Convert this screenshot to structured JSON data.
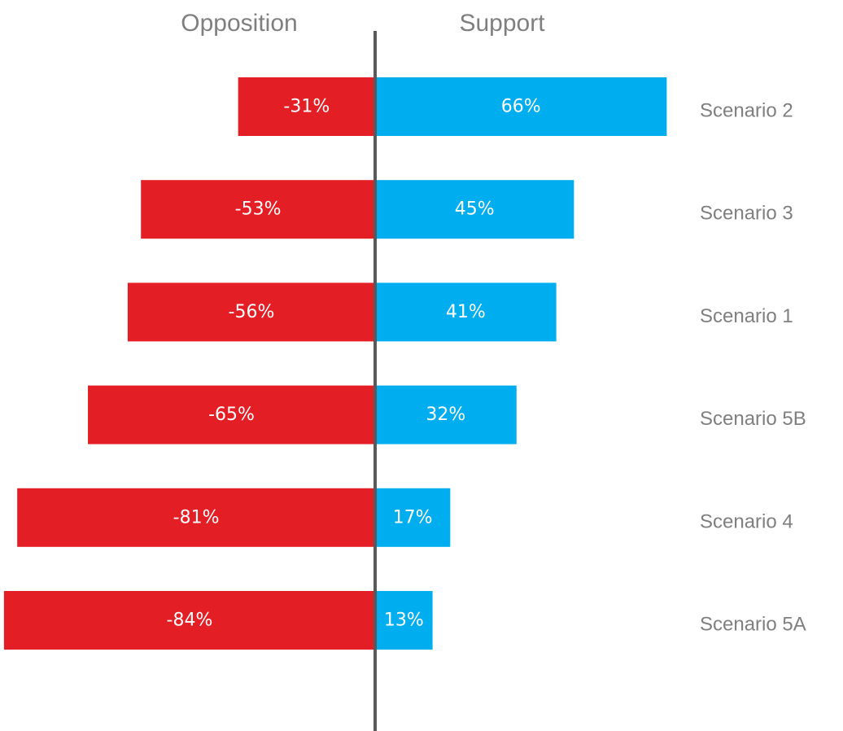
{
  "chart_data": {
    "type": "bar",
    "orientation": "horizontal-diverging",
    "categories": [
      "Scenario 2",
      "Scenario 3",
      "Scenario 1",
      "Scenario 5B",
      "Scenario 4",
      "Scenario 5A"
    ],
    "series": [
      {
        "name": "Opposition",
        "values": [
          -31,
          -53,
          -56,
          -65,
          -81,
          -84
        ],
        "labels": [
          "-31%",
          "-53%",
          "-56%",
          "-65%",
          "-81%",
          "-84%"
        ],
        "color": "#e31e24"
      },
      {
        "name": "Support",
        "values": [
          66,
          45,
          41,
          32,
          17,
          13
        ],
        "labels": [
          "66%",
          "45%",
          "41%",
          "32%",
          "17%",
          "13%"
        ],
        "color": "#00adef"
      }
    ],
    "xlim": [
      -87,
      79
    ],
    "legend": "top",
    "grid": false,
    "axis_color": "#595959",
    "label_color": "#7f7f7f"
  }
}
